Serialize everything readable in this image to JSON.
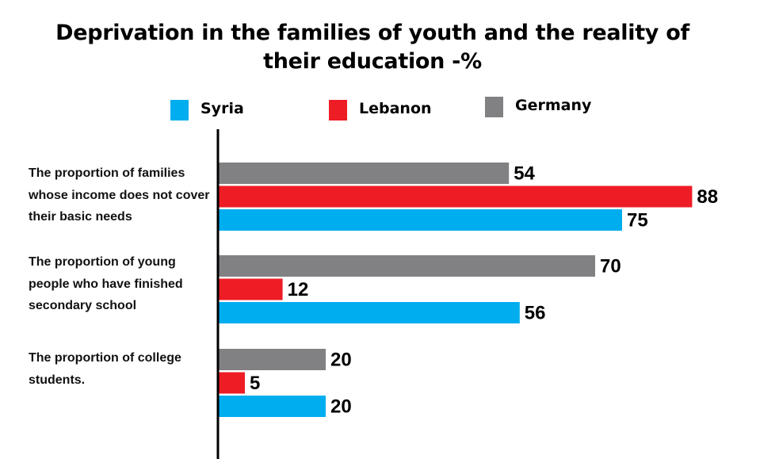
{
  "chart_data": {
    "type": "bar",
    "orientation": "horizontal",
    "title": "Deprivation in the families of youth and the reality of their education -%",
    "categories": [
      "The proportion of families whose income does not cover their basic needs",
      "The proportion of young people who have finished secondary school",
      "The proportion of college students."
    ],
    "series": [
      {
        "name": "Germany",
        "color": "#818083",
        "values": [
          54,
          70,
          20
        ]
      },
      {
        "name": "Lebanon",
        "color": "#ee1c25",
        "values": [
          88,
          12,
          5
        ]
      },
      {
        "name": "Syria",
        "color": "#00adef",
        "values": [
          75,
          56,
          20
        ]
      }
    ],
    "legend": {
      "placement": "top",
      "order": [
        "Syria",
        "Lebanon",
        "Germany"
      ]
    },
    "xlim": [
      0,
      100
    ],
    "grid": false,
    "data_labels": true
  }
}
